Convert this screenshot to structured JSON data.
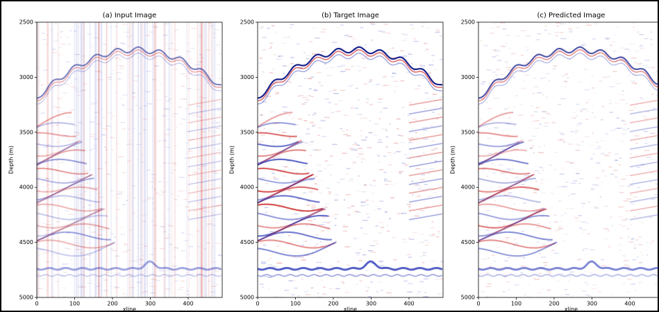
{
  "chart_data": [
    {
      "type": "image",
      "title": "(a) Input Image",
      "xlabel": "xline",
      "ylabel": "Depth (m)",
      "xlim": [
        0,
        490
      ],
      "ylim": [
        5000,
        2500
      ],
      "xticks": [
        0,
        100,
        200,
        300,
        400
      ],
      "yticks": [
        2500,
        3000,
        3500,
        4000,
        4500,
        5000
      ]
    },
    {
      "type": "image",
      "title": "(b) Target Image",
      "xlabel": "xline",
      "ylabel": "Depth (m)",
      "xlim": [
        0,
        490
      ],
      "ylim": [
        5000,
        2500
      ],
      "xticks": [
        0,
        100,
        200,
        300,
        400
      ],
      "yticks": [
        2500,
        3000,
        3500,
        4000,
        4500,
        5000
      ]
    },
    {
      "type": "image",
      "title": "(c) Predicted Image",
      "xlabel": "xline",
      "ylabel": "Depth (m)",
      "xlim": [
        0,
        490
      ],
      "ylim": [
        5000,
        2500
      ],
      "xticks": [
        0,
        100,
        200,
        300,
        400
      ],
      "yticks": [
        2500,
        3000,
        3500,
        4000,
        4500,
        5000
      ]
    }
  ]
}
